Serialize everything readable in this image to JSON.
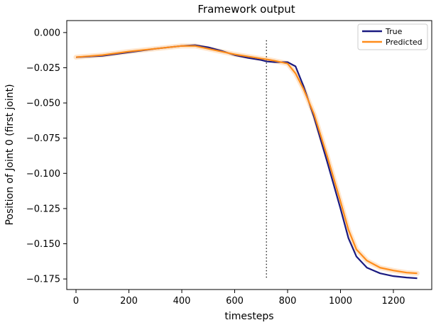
{
  "chart_data": {
    "type": "line",
    "title": "Framework output",
    "xlabel": "timesteps",
    "ylabel": "Position of Joint 0 (first joint)",
    "xlim": [
      -35,
      1345
    ],
    "ylim": [
      -0.1825,
      0.0085
    ],
    "xticks": [
      0,
      200,
      400,
      600,
      800,
      1000,
      1200
    ],
    "yticks": [
      0.0,
      -0.025,
      -0.05,
      -0.075,
      -0.1,
      -0.125,
      -0.15,
      -0.175
    ],
    "xtick_labels": [
      "0",
      "200",
      "400",
      "600",
      "800",
      "1000",
      "1200"
    ],
    "ytick_labels": [
      "0.000",
      "−0.025",
      "−0.050",
      "−0.075",
      "−0.100",
      "−0.125",
      "−0.150",
      "−0.175"
    ],
    "grid": false,
    "legend": {
      "placement": "top-right",
      "entries": [
        "True",
        "Predicted"
      ]
    },
    "vline_x": 720,
    "series": [
      {
        "name": "True",
        "color": "#1a1a80",
        "x": [
          0,
          100,
          200,
          300,
          400,
          450,
          500,
          550,
          600,
          650,
          700,
          720,
          750,
          800,
          830,
          860,
          900,
          950,
          1000,
          1030,
          1060,
          1100,
          1150,
          1200,
          1250,
          1290
        ],
        "y": [
          -0.0175,
          -0.0165,
          -0.014,
          -0.0115,
          -0.0095,
          -0.009,
          -0.0105,
          -0.013,
          -0.016,
          -0.018,
          -0.0195,
          -0.0205,
          -0.021,
          -0.021,
          -0.024,
          -0.038,
          -0.06,
          -0.092,
          -0.125,
          -0.146,
          -0.159,
          -0.167,
          -0.171,
          -0.173,
          -0.174,
          -0.1745
        ]
      },
      {
        "name": "Predicted",
        "color": "#ff8c1a",
        "x": [
          0,
          100,
          200,
          300,
          400,
          450,
          500,
          550,
          600,
          650,
          700,
          720,
          750,
          800,
          830,
          860,
          900,
          950,
          1000,
          1030,
          1060,
          1100,
          1150,
          1200,
          1250,
          1290
        ],
        "y": [
          -0.0175,
          -0.016,
          -0.0135,
          -0.0115,
          -0.0095,
          -0.0095,
          -0.0115,
          -0.0135,
          -0.0155,
          -0.017,
          -0.0185,
          -0.019,
          -0.02,
          -0.022,
          -0.029,
          -0.04,
          -0.058,
          -0.088,
          -0.12,
          -0.14,
          -0.154,
          -0.162,
          -0.167,
          -0.169,
          -0.1705,
          -0.171
        ]
      }
    ]
  }
}
